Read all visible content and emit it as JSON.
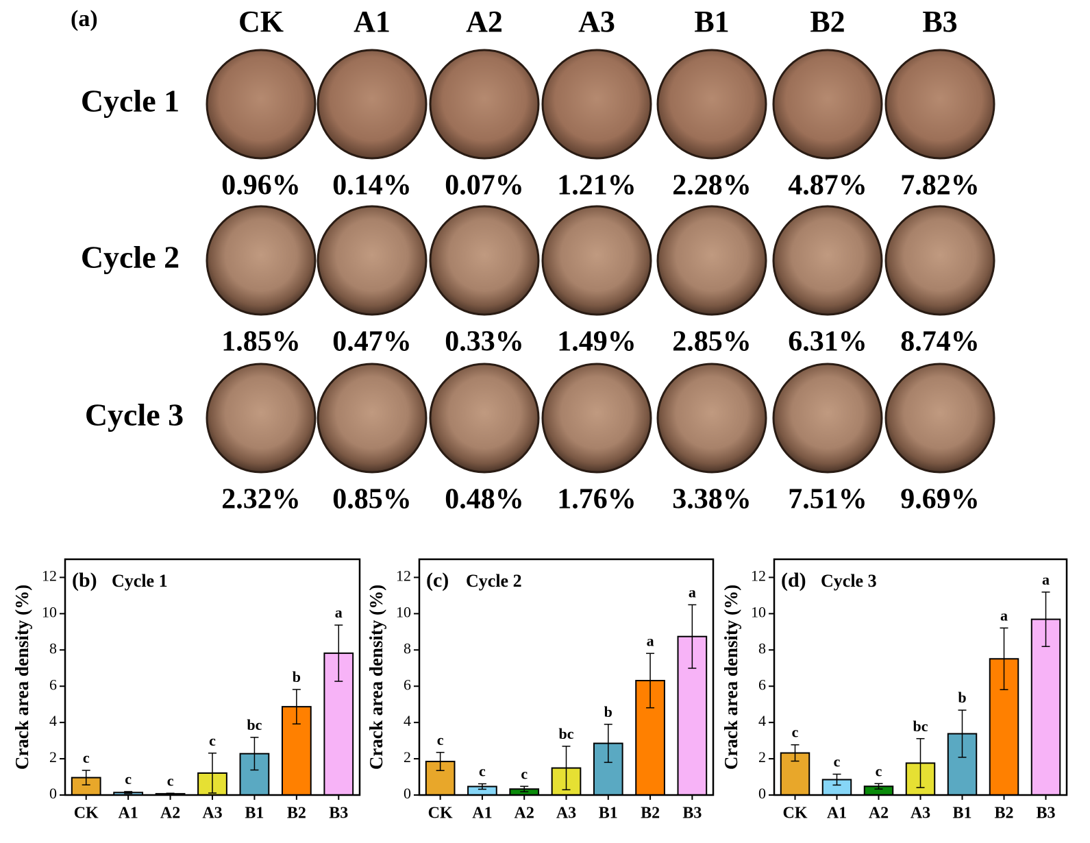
{
  "photo_grid": {
    "label": "(a)",
    "columns": [
      "CK",
      "A1",
      "A2",
      "A3",
      "B1",
      "B2",
      "B3"
    ],
    "rows": [
      {
        "label": "Cycle 1",
        "labels": [
          "0.96%",
          "0.14%",
          "0.07%",
          "1.21%",
          "2.28%",
          "4.87%",
          "7.82%"
        ]
      },
      {
        "label": "Cycle 2",
        "labels": [
          "1.85%",
          "0.47%",
          "0.33%",
          "1.49%",
          "2.85%",
          "6.31%",
          "8.74%"
        ]
      },
      {
        "label": "Cycle 3",
        "labels": [
          "2.32%",
          "0.85%",
          "0.48%",
          "1.76%",
          "3.38%",
          "7.51%",
          "9.69%"
        ]
      }
    ]
  },
  "chart_data": [
    {
      "type": "bar",
      "panel": "(b)",
      "title": "Cycle 1",
      "ylabel": "Crack area density (%)",
      "categories": [
        "CK",
        "A1",
        "A2",
        "A3",
        "B1",
        "B2",
        "B3"
      ],
      "values": [
        0.96,
        0.14,
        0.07,
        1.21,
        2.28,
        4.87,
        7.82
      ],
      "errors": [
        0.4,
        0.05,
        0.03,
        1.1,
        0.9,
        0.95,
        1.55
      ],
      "letters": [
        "c",
        "c",
        "c",
        "c",
        "bc",
        "b",
        "a"
      ],
      "colors": [
        "#e8a72a",
        "#86d6f7",
        "#0a8a0a",
        "#e6e033",
        "#5aa9c2",
        "#ff8000",
        "#f7b3f7"
      ],
      "ylim": [
        0,
        13
      ],
      "yticks": [
        0,
        2,
        4,
        6,
        8,
        10,
        12
      ]
    },
    {
      "type": "bar",
      "panel": "(c)",
      "title": "Cycle 2",
      "ylabel": "Crack area density (%)",
      "categories": [
        "CK",
        "A1",
        "A2",
        "A3",
        "B1",
        "B2",
        "B3"
      ],
      "values": [
        1.85,
        0.47,
        0.33,
        1.49,
        2.85,
        6.31,
        8.74
      ],
      "errors": [
        0.5,
        0.15,
        0.15,
        1.2,
        1.05,
        1.5,
        1.75
      ],
      "letters": [
        "c",
        "c",
        "c",
        "bc",
        "b",
        "a",
        "a"
      ],
      "colors": [
        "#e8a72a",
        "#86d6f7",
        "#0a8a0a",
        "#e6e033",
        "#5aa9c2",
        "#ff8000",
        "#f7b3f7"
      ],
      "ylim": [
        0,
        13
      ],
      "yticks": [
        0,
        2,
        4,
        6,
        8,
        10,
        12
      ]
    },
    {
      "type": "bar",
      "panel": "(d)",
      "title": "Cycle 3",
      "ylabel": "Crack area density (%)",
      "categories": [
        "CK",
        "A1",
        "A2",
        "A3",
        "B1",
        "B2",
        "B3"
      ],
      "values": [
        2.32,
        0.85,
        0.48,
        1.76,
        3.38,
        7.51,
        9.69
      ],
      "errors": [
        0.45,
        0.3,
        0.15,
        1.35,
        1.3,
        1.7,
        1.5
      ],
      "letters": [
        "c",
        "c",
        "c",
        "bc",
        "b",
        "a",
        "a"
      ],
      "colors": [
        "#e8a72a",
        "#86d6f7",
        "#0a8a0a",
        "#e6e033",
        "#5aa9c2",
        "#ff8000",
        "#f7b3f7"
      ],
      "ylim": [
        0,
        13
      ],
      "yticks": [
        0,
        2,
        4,
        6,
        8,
        10,
        12
      ]
    }
  ]
}
